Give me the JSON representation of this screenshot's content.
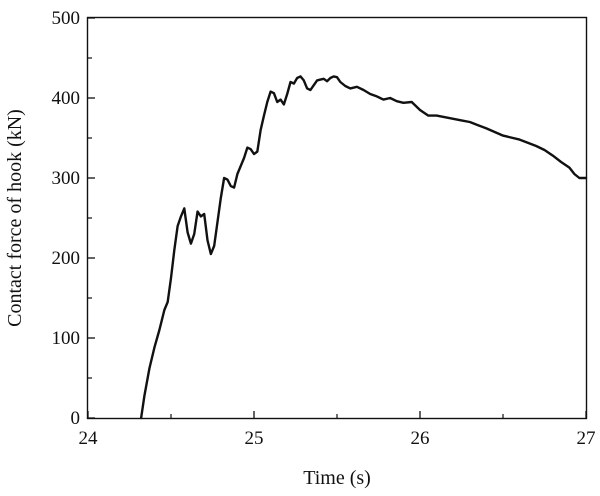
{
  "chart_data": {
    "type": "line",
    "title": "",
    "xlabel": "Time (s)",
    "ylabel": "Contact force of hook (kN)",
    "xlim": [
      24,
      27
    ],
    "ylim": [
      0,
      500
    ],
    "xticks": [
      "24",
      "25",
      "26",
      "27"
    ],
    "yticks": [
      "0",
      "100",
      "200",
      "300",
      "400",
      "500"
    ],
    "grid": false,
    "legend": "none",
    "line_color": "#111111",
    "series": [
      {
        "x": [
          24.32,
          24.34,
          24.37,
          24.4,
          24.43,
          24.46,
          24.48,
          24.5,
          24.52,
          24.54,
          24.56,
          24.58,
          24.6,
          24.62,
          24.64,
          24.66,
          24.68,
          24.7,
          24.72,
          24.74,
          24.76,
          24.78,
          24.8,
          24.82,
          24.84,
          24.86,
          24.88,
          24.9,
          24.92,
          24.94,
          24.96,
          24.98,
          25.0,
          25.02,
          25.04,
          25.06,
          25.08,
          25.1,
          25.12,
          25.14,
          25.16,
          25.18,
          25.2,
          25.22,
          25.24,
          25.26,
          25.28,
          25.3,
          25.32,
          25.34,
          25.36,
          25.38,
          25.4,
          25.42,
          25.44,
          25.46,
          25.48,
          25.5,
          25.52,
          25.55,
          25.58,
          25.62,
          25.66,
          25.7,
          25.74,
          25.78,
          25.82,
          25.86,
          25.9,
          25.95,
          26.0,
          26.05,
          26.1,
          26.15,
          26.2,
          26.25,
          26.3,
          26.35,
          26.4,
          26.5,
          26.6,
          26.7,
          26.75,
          26.8,
          26.85,
          26.9,
          26.93,
          26.96,
          27.0
        ],
        "y": [
          0,
          28,
          62,
          88,
          110,
          135,
          145,
          175,
          210,
          240,
          252,
          262,
          232,
          218,
          230,
          258,
          252,
          255,
          222,
          205,
          215,
          245,
          275,
          300,
          298,
          290,
          288,
          305,
          315,
          325,
          338,
          336,
          330,
          333,
          360,
          378,
          395,
          408,
          406,
          395,
          398,
          392,
          405,
          420,
          418,
          425,
          427,
          422,
          412,
          410,
          416,
          422,
          423,
          424,
          421,
          425,
          427,
          426,
          420,
          415,
          412,
          414,
          410,
          405,
          402,
          398,
          400,
          396,
          394,
          395,
          385,
          378,
          378,
          376,
          374,
          372,
          370,
          366,
          362,
          353,
          348,
          340,
          335,
          328,
          320,
          313,
          305,
          300,
          300
        ]
      }
    ]
  }
}
